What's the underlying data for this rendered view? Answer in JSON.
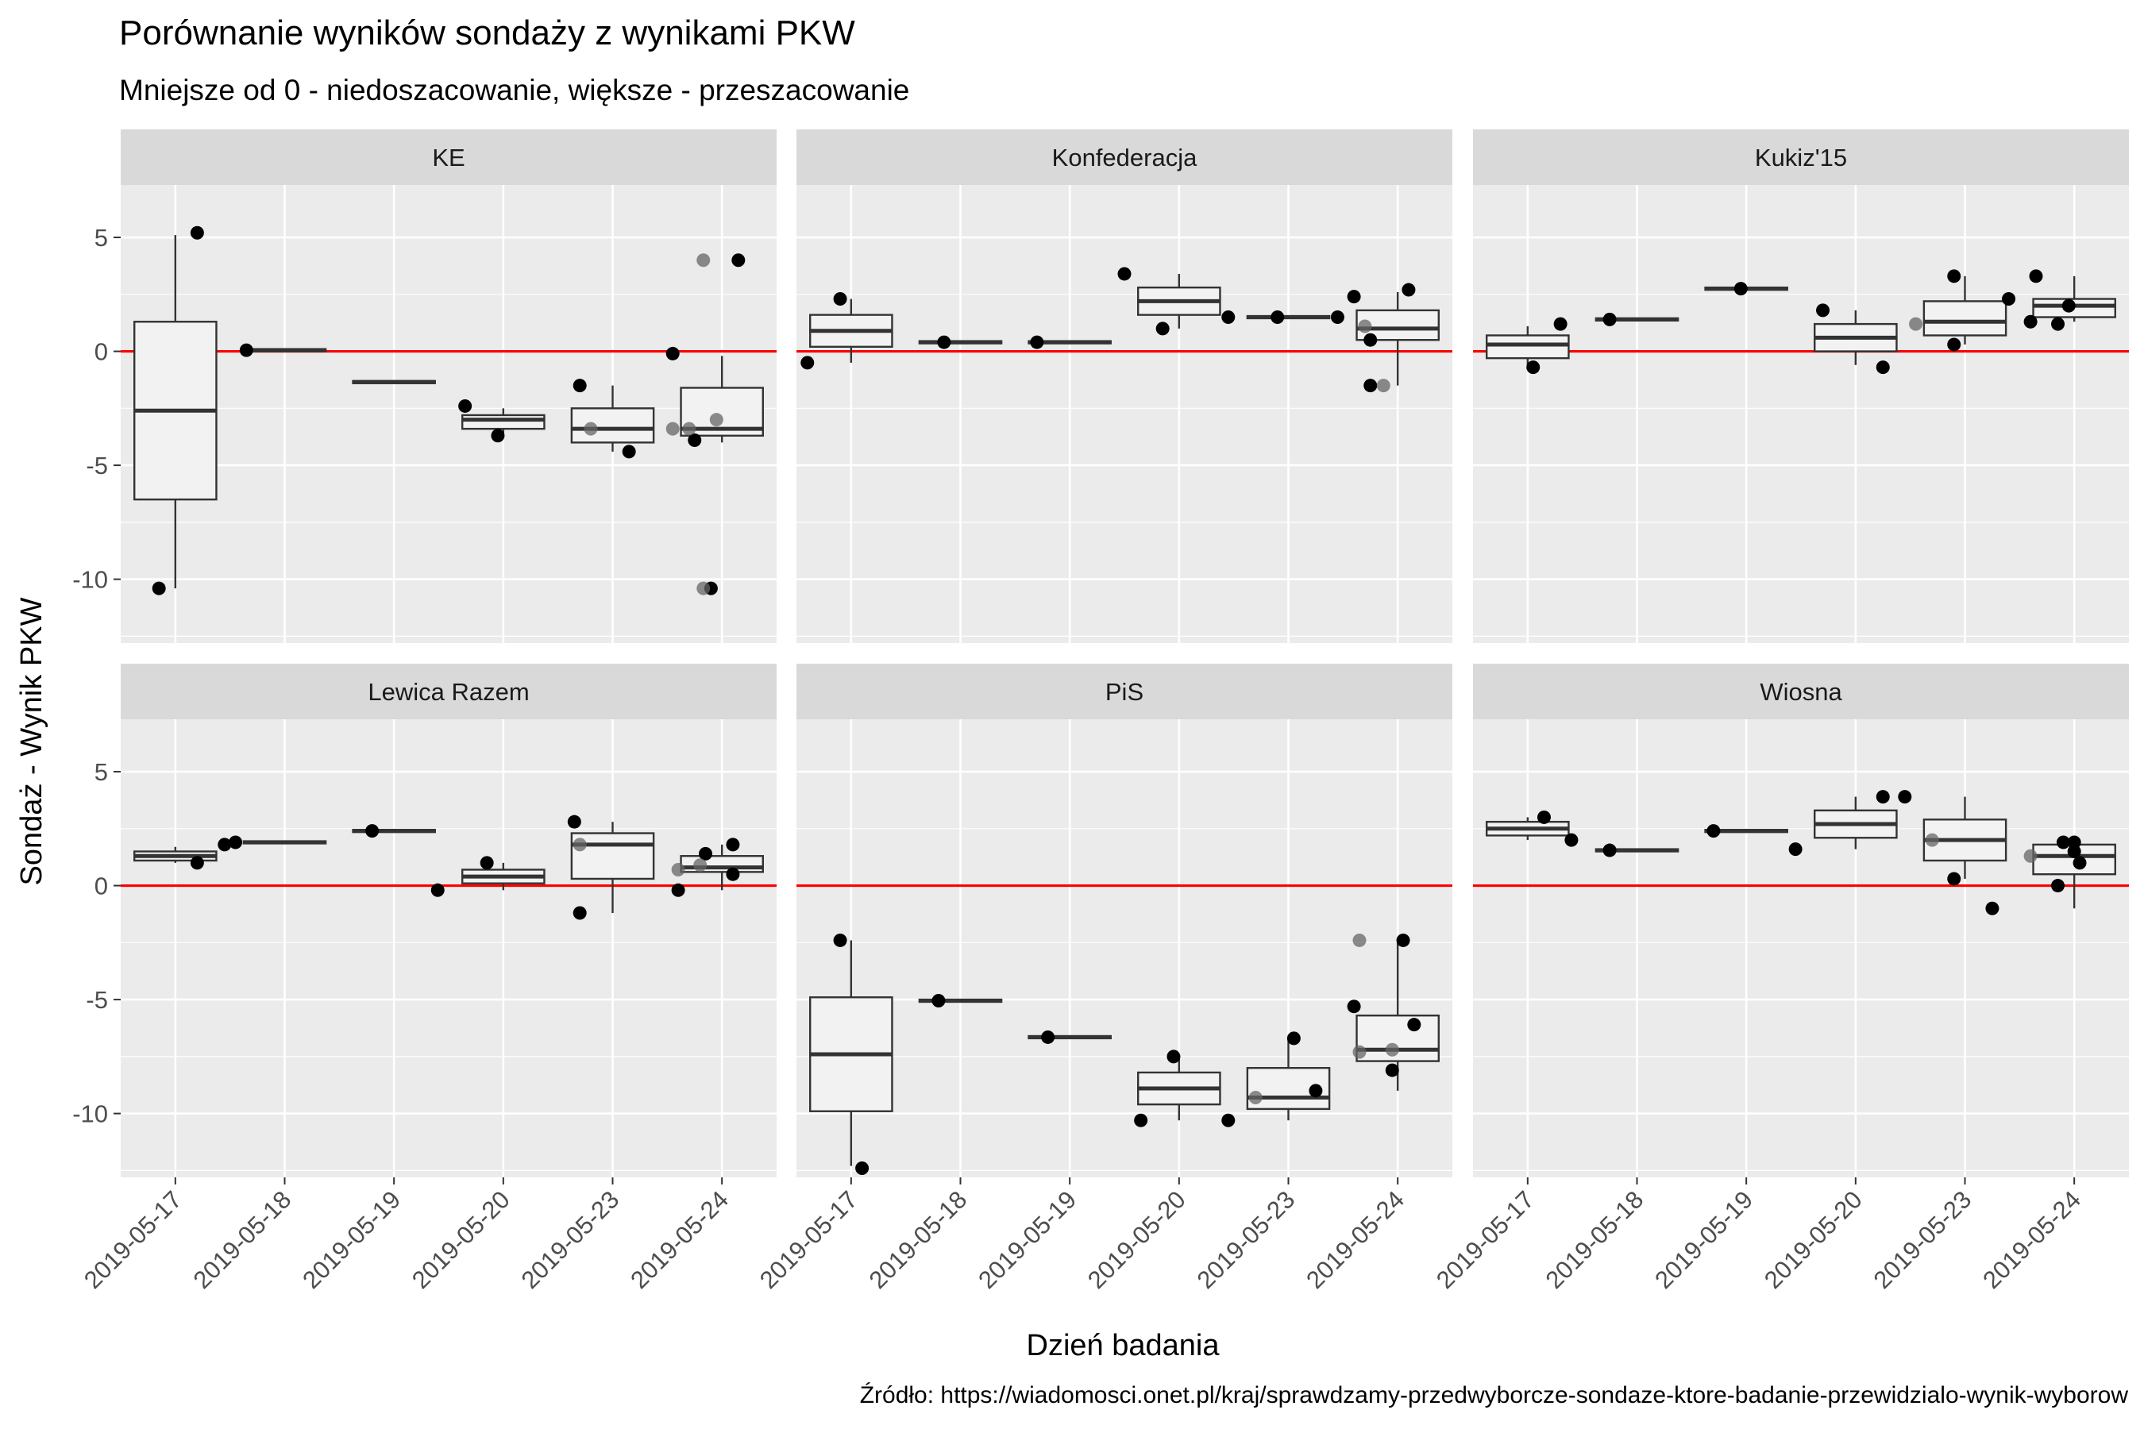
{
  "chart_data": {
    "type": "boxplot",
    "title": "Porównanie wyników sondaży z wynikami PKW",
    "subtitle": "Mniejsze od 0 - niedoszacowanie, większe - przeszacowanie",
    "xlabel": "Dzień badania",
    "ylabel": "Sondaż - Wynik PKW",
    "caption": "Źródło: https://wiadomosci.onet.pl/kraj/sprawdzamy-przedwyborcze-sondaze-ktore-badanie-przewidzialo-wynik-wyborow",
    "categories": [
      "2019-05-17",
      "2019-05-18",
      "2019-05-19",
      "2019-05-20",
      "2019-05-23",
      "2019-05-24"
    ],
    "yticks": [
      -10,
      -5,
      0,
      5
    ],
    "ylim": [
      -12.8,
      7.3
    ],
    "reference_line": {
      "y": 0,
      "color": "#ff0000"
    },
    "colors": {
      "panel_bg": "#ebebeb",
      "strip_bg": "#d9d9d9",
      "grid": "#ffffff",
      "box_fill": "#f2f2f2",
      "point": "#000000"
    },
    "panels": [
      {
        "name": "KE",
        "boxes": [
          {
            "q1": -6.5,
            "median": -2.6,
            "q3": 1.3,
            "lo": -10.4,
            "hi": 5.1
          },
          {
            "q1": 0.0,
            "median": 0.05,
            "q3": 0.1,
            "lo": 0.0,
            "hi": 0.1
          },
          {
            "q1": -1.4,
            "median": -1.35,
            "q3": -1.3,
            "lo": -1.4,
            "hi": -1.3
          },
          {
            "q1": -3.4,
            "median": -3.0,
            "q3": -2.8,
            "lo": -3.7,
            "hi": -2.5
          },
          {
            "q1": -4.0,
            "median": -3.4,
            "q3": -2.5,
            "lo": -4.4,
            "hi": -1.5
          },
          {
            "q1": -3.7,
            "median": -3.4,
            "q3": -1.6,
            "lo": -4.0,
            "hi": -0.2
          }
        ],
        "points": [
          {
            "x": 0.35,
            "y": -10.4
          },
          {
            "x": 0.7,
            "y": 5.2
          },
          {
            "x": 1.15,
            "y": 0.05
          },
          {
            "x": 3.15,
            "y": -2.4
          },
          {
            "x": 3.45,
            "y": -3.7
          },
          {
            "x": 4.2,
            "y": -1.5
          },
          {
            "x": 4.65,
            "y": -4.4
          },
          {
            "x": 4.3,
            "y": -3.4,
            "gray": true
          },
          {
            "x": 5.05,
            "y": -0.1
          },
          {
            "x": 5.25,
            "y": -3.9
          },
          {
            "x": 5.4,
            "y": -10.4
          },
          {
            "x": 5.33,
            "y": -10.4,
            "gray": true
          },
          {
            "x": 5.33,
            "y": 4.0,
            "gray": true
          },
          {
            "x": 5.65,
            "y": 4.0
          },
          {
            "x": 5.05,
            "y": -3.4,
            "gray": true
          },
          {
            "x": 5.2,
            "y": -3.4,
            "gray": true
          },
          {
            "x": 5.45,
            "y": -3.0,
            "gray": true
          }
        ]
      },
      {
        "name": "Konfederacja",
        "boxes": [
          {
            "q1": 0.2,
            "median": 0.9,
            "q3": 1.6,
            "lo": -0.5,
            "hi": 2.3
          },
          {
            "q1": 0.35,
            "median": 0.4,
            "q3": 0.45,
            "lo": 0.35,
            "hi": 0.45
          },
          {
            "q1": 0.35,
            "median": 0.4,
            "q3": 0.45,
            "lo": 0.35,
            "hi": 0.45
          },
          {
            "q1": 1.6,
            "median": 2.2,
            "q3": 2.8,
            "lo": 1.0,
            "hi": 3.4
          },
          {
            "q1": 1.45,
            "median": 1.5,
            "q3": 1.55,
            "lo": 1.45,
            "hi": 1.55
          },
          {
            "q1": 0.5,
            "median": 1.0,
            "q3": 1.8,
            "lo": -1.5,
            "hi": 2.6
          }
        ],
        "points": [
          {
            "x": 0.1,
            "y": -0.5
          },
          {
            "x": 0.4,
            "y": 2.3
          },
          {
            "x": 1.35,
            "y": 0.4
          },
          {
            "x": 2.2,
            "y": 0.4
          },
          {
            "x": 3.0,
            "y": 3.4
          },
          {
            "x": 3.35,
            "y": 1.0
          },
          {
            "x": 3.95,
            "y": 1.5
          },
          {
            "x": 4.4,
            "y": 1.5
          },
          {
            "x": 4.95,
            "y": 1.5
          },
          {
            "x": 5.1,
            "y": 2.4
          },
          {
            "x": 5.25,
            "y": -1.5
          },
          {
            "x": 5.37,
            "y": -1.5,
            "gray": true
          },
          {
            "x": 5.25,
            "y": 0.5
          },
          {
            "x": 5.2,
            "y": 1.1,
            "gray": true
          },
          {
            "x": 5.6,
            "y": 2.7
          }
        ]
      },
      {
        "name": "Kukiz'15",
        "boxes": [
          {
            "q1": -0.3,
            "median": 0.3,
            "q3": 0.7,
            "lo": -0.6,
            "hi": 1.1
          },
          {
            "q1": 1.35,
            "median": 1.4,
            "q3": 1.45,
            "lo": 1.35,
            "hi": 1.45
          },
          {
            "q1": 2.7,
            "median": 2.75,
            "q3": 2.8,
            "lo": 2.7,
            "hi": 2.8
          },
          {
            "q1": 0.0,
            "median": 0.6,
            "q3": 1.2,
            "lo": -0.6,
            "hi": 1.8
          },
          {
            "q1": 0.7,
            "median": 1.3,
            "q3": 2.2,
            "lo": 0.3,
            "hi": 3.3
          },
          {
            "q1": 1.5,
            "median": 2.0,
            "q3": 2.3,
            "lo": 1.3,
            "hi": 3.3
          }
        ],
        "points": [
          {
            "x": 0.55,
            "y": -0.7
          },
          {
            "x": 0.8,
            "y": 1.2
          },
          {
            "x": 1.25,
            "y": 1.4
          },
          {
            "x": 2.45,
            "y": 2.75
          },
          {
            "x": 3.2,
            "y": 1.8
          },
          {
            "x": 3.75,
            "y": -0.7
          },
          {
            "x": 4.05,
            "y": 1.2,
            "gray": true
          },
          {
            "x": 4.4,
            "y": 3.3
          },
          {
            "x": 4.4,
            "y": 0.3
          },
          {
            "x": 4.9,
            "y": 2.3
          },
          {
            "x": 5.1,
            "y": 1.3
          },
          {
            "x": 5.15,
            "y": 3.3
          },
          {
            "x": 5.35,
            "y": 1.2
          },
          {
            "x": 5.45,
            "y": 2.0
          }
        ]
      },
      {
        "name": "Lewica Razem",
        "boxes": [
          {
            "q1": 1.1,
            "median": 1.3,
            "q3": 1.5,
            "lo": 1.0,
            "hi": 1.7
          },
          {
            "q1": 1.85,
            "median": 1.9,
            "q3": 1.95,
            "lo": 1.85,
            "hi": 1.95
          },
          {
            "q1": 2.35,
            "median": 2.4,
            "q3": 2.45,
            "lo": 2.35,
            "hi": 2.45
          },
          {
            "q1": 0.1,
            "median": 0.4,
            "q3": 0.7,
            "lo": -0.2,
            "hi": 1.0
          },
          {
            "q1": 0.3,
            "median": 1.8,
            "q3": 2.3,
            "lo": -1.2,
            "hi": 2.8
          },
          {
            "q1": 0.6,
            "median": 0.8,
            "q3": 1.3,
            "lo": -0.2,
            "hi": 1.8
          }
        ],
        "points": [
          {
            "x": 0.7,
            "y": 1.0
          },
          {
            "x": 0.95,
            "y": 1.8
          },
          {
            "x": 1.05,
            "y": 1.9
          },
          {
            "x": 2.3,
            "y": 2.4
          },
          {
            "x": 2.9,
            "y": -0.2
          },
          {
            "x": 3.35,
            "y": 1.0
          },
          {
            "x": 4.15,
            "y": 2.8
          },
          {
            "x": 4.2,
            "y": 1.8,
            "gray": true
          },
          {
            "x": 4.2,
            "y": -1.2
          },
          {
            "x": 5.1,
            "y": -0.2
          },
          {
            "x": 5.35,
            "y": 1.4
          },
          {
            "x": 5.6,
            "y": 1.8
          },
          {
            "x": 5.6,
            "y": 0.5
          },
          {
            "x": 5.3,
            "y": 0.9,
            "gray": true
          },
          {
            "x": 5.1,
            "y": 0.7,
            "gray": true
          }
        ]
      },
      {
        "name": "PiS",
        "boxes": [
          {
            "q1": -9.9,
            "median": -7.4,
            "q3": -4.9,
            "lo": -12.3,
            "hi": -2.4
          },
          {
            "q1": -5.1,
            "median": -5.05,
            "q3": -5.0,
            "lo": -5.1,
            "hi": -5.0
          },
          {
            "q1": -6.7,
            "median": -6.65,
            "q3": -6.6,
            "lo": -6.7,
            "hi": -6.6
          },
          {
            "q1": -9.6,
            "median": -8.9,
            "q3": -8.2,
            "lo": -10.3,
            "hi": -7.5
          },
          {
            "q1": -9.8,
            "median": -9.3,
            "q3": -8.0,
            "lo": -10.3,
            "hi": -6.7
          },
          {
            "q1": -7.7,
            "median": -7.2,
            "q3": -5.7,
            "lo": -9.0,
            "hi": -2.4
          }
        ],
        "points": [
          {
            "x": 0.4,
            "y": -2.4
          },
          {
            "x": 0.6,
            "y": -12.4
          },
          {
            "x": 1.3,
            "y": -5.05
          },
          {
            "x": 2.3,
            "y": -6.65
          },
          {
            "x": 3.15,
            "y": -10.3
          },
          {
            "x": 3.45,
            "y": -7.5
          },
          {
            "x": 3.95,
            "y": -10.3
          },
          {
            "x": 4.2,
            "y": -9.3,
            "gray": true
          },
          {
            "x": 4.55,
            "y": -6.7
          },
          {
            "x": 4.75,
            "y": -9.0
          },
          {
            "x": 5.1,
            "y": -5.3
          },
          {
            "x": 5.15,
            "y": -7.3,
            "gray": true
          },
          {
            "x": 5.15,
            "y": -2.4,
            "gray": true
          },
          {
            "x": 5.55,
            "y": -2.4
          },
          {
            "x": 5.45,
            "y": -8.1
          },
          {
            "x": 5.45,
            "y": -7.2,
            "gray": true
          },
          {
            "x": 5.65,
            "y": -6.1
          }
        ]
      },
      {
        "name": "Wiosna",
        "boxes": [
          {
            "q1": 2.2,
            "median": 2.5,
            "q3": 2.8,
            "lo": 2.0,
            "hi": 3.0
          },
          {
            "q1": 1.5,
            "median": 1.55,
            "q3": 1.6,
            "lo": 1.5,
            "hi": 1.6
          },
          {
            "q1": 2.35,
            "median": 2.4,
            "q3": 2.45,
            "lo": 2.35,
            "hi": 2.45
          },
          {
            "q1": 2.1,
            "median": 2.7,
            "q3": 3.3,
            "lo": 1.6,
            "hi": 3.9
          },
          {
            "q1": 1.1,
            "median": 2.0,
            "q3": 2.9,
            "lo": 0.3,
            "hi": 3.9
          },
          {
            "q1": 0.5,
            "median": 1.3,
            "q3": 1.8,
            "lo": -1.0,
            "hi": 1.9
          }
        ],
        "points": [
          {
            "x": 0.65,
            "y": 3.0
          },
          {
            "x": 0.9,
            "y": 2.0
          },
          {
            "x": 1.25,
            "y": 1.55
          },
          {
            "x": 2.2,
            "y": 2.4
          },
          {
            "x": 2.95,
            "y": 1.6
          },
          {
            "x": 3.75,
            "y": 3.9
          },
          {
            "x": 3.95,
            "y": 3.9
          },
          {
            "x": 4.2,
            "y": 2.0,
            "gray": true
          },
          {
            "x": 4.4,
            "y": 0.3
          },
          {
            "x": 4.75,
            "y": -1.0
          },
          {
            "x": 5.1,
            "y": 1.3,
            "gray": true
          },
          {
            "x": 5.35,
            "y": 0.0
          },
          {
            "x": 5.4,
            "y": 1.9
          },
          {
            "x": 5.5,
            "y": 1.9
          },
          {
            "x": 5.5,
            "y": 1.5
          },
          {
            "x": 5.55,
            "y": 1.0
          }
        ]
      }
    ]
  }
}
